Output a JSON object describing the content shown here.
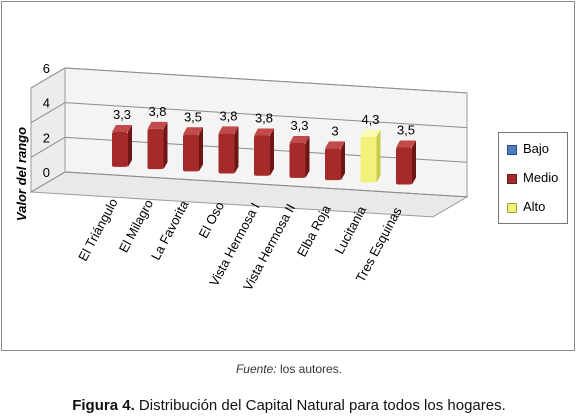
{
  "chart_data": {
    "type": "bar",
    "categories": [
      "El Triángulo",
      "El Milagro",
      "La Favorita",
      "El Oso",
      "Vista Hermosa I",
      "Vista Hermosa II",
      "Elba Roja",
      "Lucitania",
      "Tres Esquinas"
    ],
    "values": [
      3.3,
      3.8,
      3.5,
      3.8,
      3.8,
      3.3,
      3,
      4.3,
      3.5
    ],
    "value_labels": [
      "3,3",
      "3,8",
      "3,5",
      "3,8",
      "3,8",
      "3,3",
      "3",
      "4,3",
      "3,5"
    ],
    "levels": [
      "Medio",
      "Medio",
      "Medio",
      "Medio",
      "Medio",
      "Medio",
      "Medio",
      "Alto",
      "Medio"
    ],
    "ylabel": "Valor del rango",
    "ylim": [
      0,
      6
    ],
    "yticks": [
      "0",
      "2",
      "4",
      "6"
    ],
    "grid": true,
    "legend_position": "right",
    "legend": [
      {
        "name": "Bajo",
        "color": "#4a7cc6"
      },
      {
        "name": "Medio",
        "color": "#a52a2a"
      },
      {
        "name": "Alto",
        "color": "#f2f27a"
      }
    ]
  },
  "source": {
    "label": "Fuente:",
    "text": "los autores."
  },
  "caption": {
    "number": "Figura 4.",
    "text": "Distribución del Capital Natural para todos los hogares."
  }
}
